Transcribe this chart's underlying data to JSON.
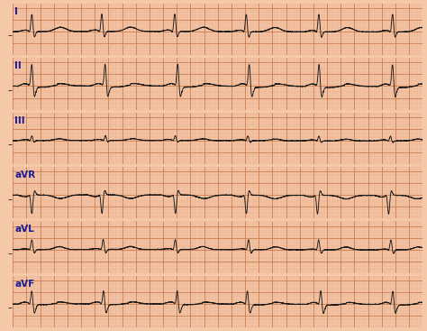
{
  "background_color": "#f5c8a8",
  "grid_minor_color": "#e8a080",
  "grid_major_color": "#c87848",
  "line_color": "#1a1a1a",
  "label_color": "#1a1a99",
  "labels": [
    "I",
    "II",
    "III",
    "aVR",
    "aVL",
    "aVF"
  ],
  "figsize": [
    4.74,
    3.67
  ],
  "dpi": 100,
  "duration_s": 6.0,
  "rr_interval": 1.05,
  "fs": 500,
  "noise": 0.008
}
